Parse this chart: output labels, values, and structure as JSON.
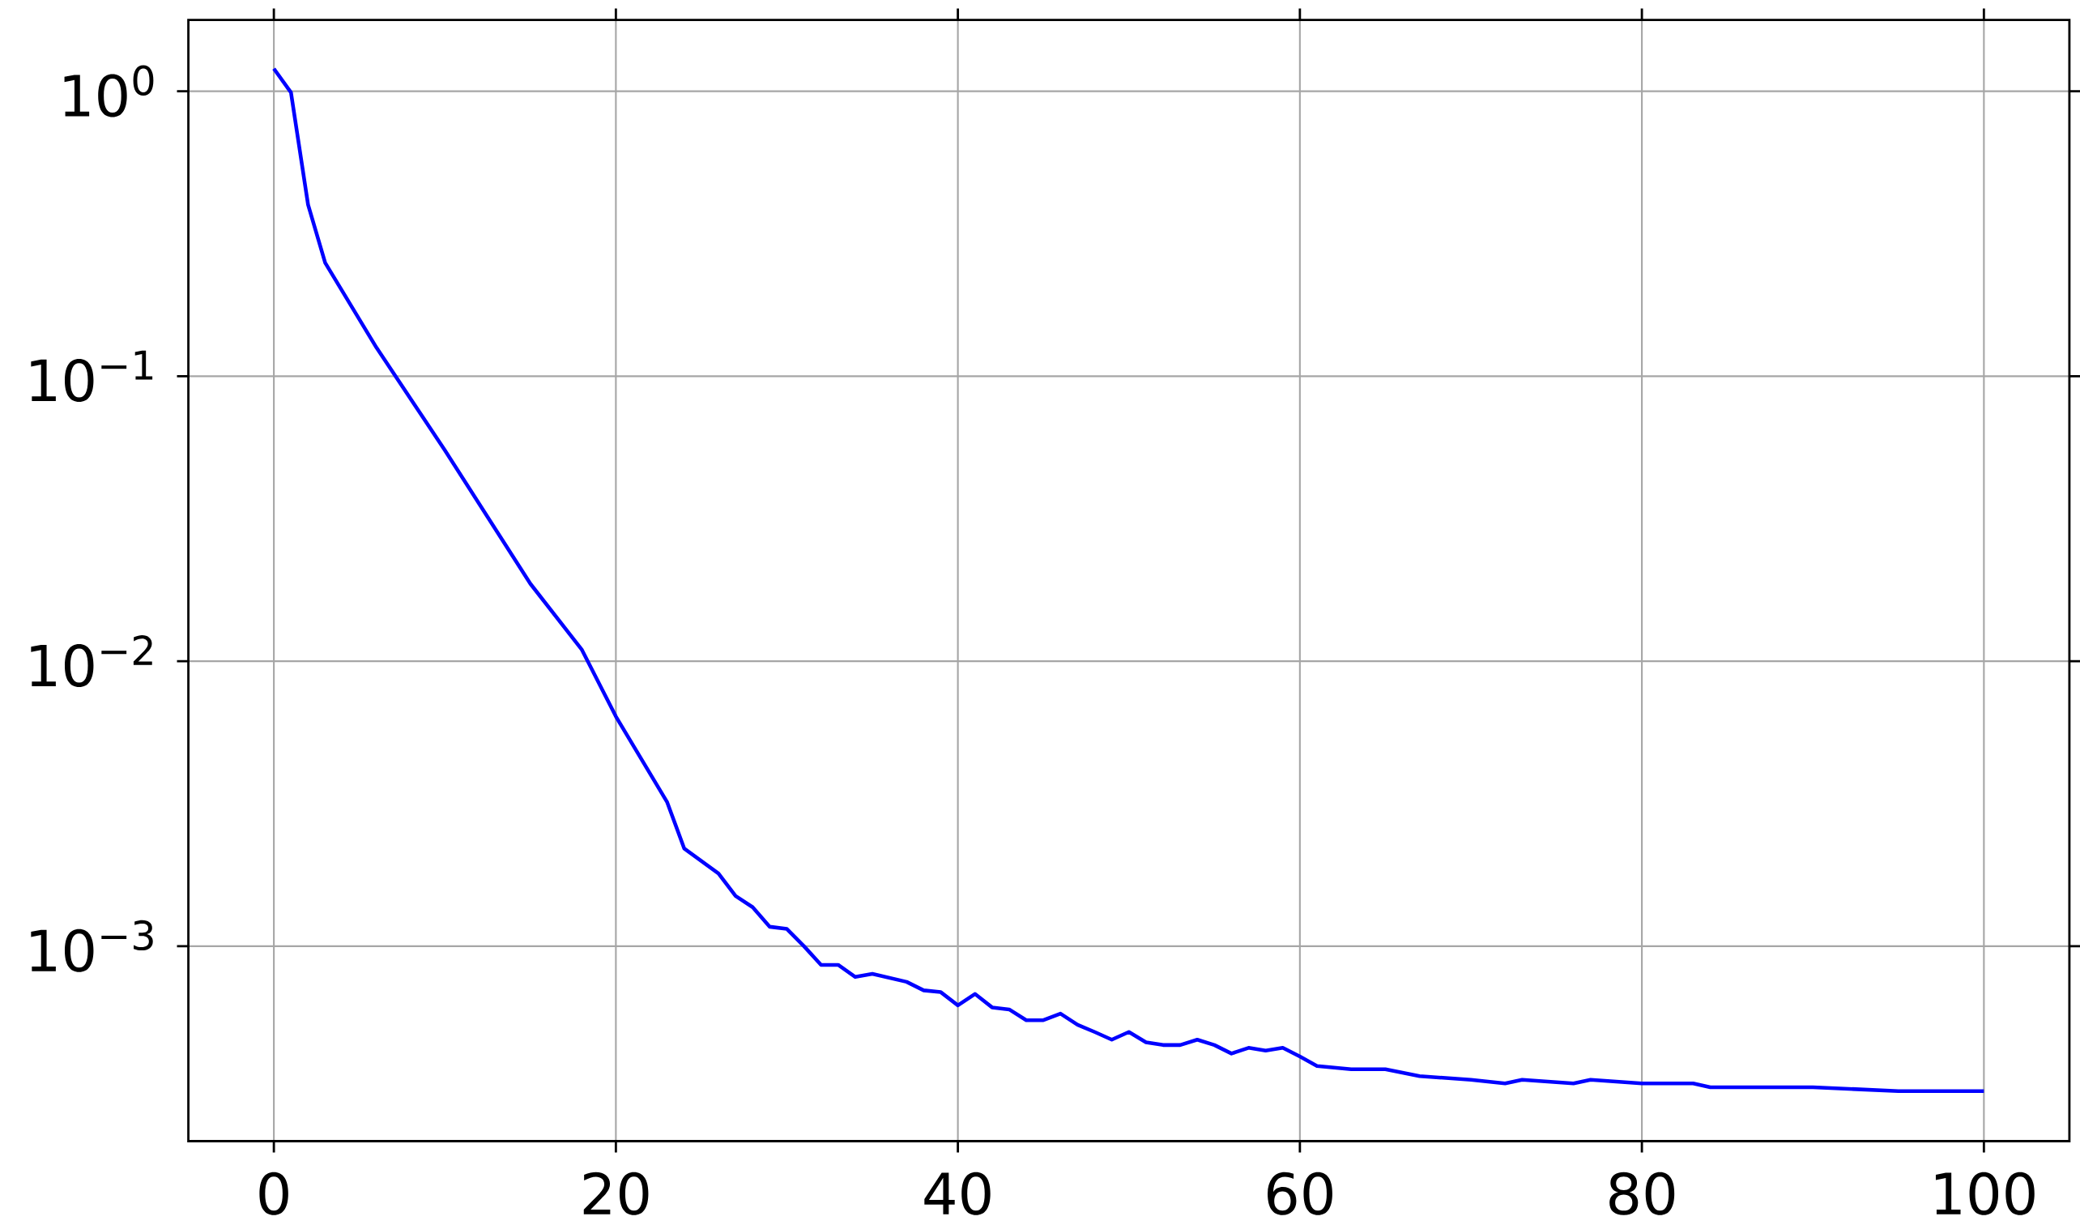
{
  "chart_data": {
    "type": "line",
    "log": "y",
    "grid": true,
    "line_style": "solid",
    "marker": "none",
    "xlim": [
      -5,
      105
    ],
    "ylim": [
      0.000207,
      1.78
    ],
    "xticks": [
      0,
      20,
      40,
      60,
      80,
      100
    ],
    "yticks": [
      {
        "value": 0.001,
        "label": "10$^{−3}$"
      },
      {
        "value": 0.01,
        "label": "10$^{−2}$"
      },
      {
        "value": 0.1,
        "label": "10$^{−1}$"
      },
      {
        "value": 1,
        "label": "10$^{0}$"
      }
    ],
    "x": [
      0,
      1,
      2,
      3,
      6,
      10,
      15,
      18,
      20,
      23,
      24,
      26,
      27,
      28,
      29,
      30,
      31,
      32,
      33,
      34,
      35,
      37,
      38,
      39,
      40,
      41,
      42,
      43,
      44,
      45,
      46,
      47,
      48,
      49,
      50,
      51,
      52,
      53,
      54,
      55,
      56,
      57,
      58,
      59,
      60,
      61,
      63,
      65,
      66,
      67,
      70,
      72,
      73,
      76,
      77,
      80,
      83,
      84,
      90,
      95,
      100
    ],
    "series": [
      {
        "color": "#0000ff",
        "values": [
          1.2,
          0.99,
          0.4,
          0.25,
          0.126,
          0.055,
          0.0187,
          0.011,
          0.0064,
          0.0032,
          0.0022,
          0.0018,
          0.0015,
          0.00137,
          0.00117,
          0.00115,
          0.001,
          0.00086,
          0.00086,
          0.00078,
          0.0008,
          0.00075,
          0.0007,
          0.00069,
          0.00062,
          0.00068,
          0.00061,
          0.0006,
          0.00055,
          0.00055,
          0.00058,
          0.00053,
          0.0005,
          0.00047,
          0.0005,
          0.00046,
          0.00045,
          0.00045,
          0.00047,
          0.00045,
          0.00042,
          0.00044,
          0.00043,
          0.00044,
          0.00041,
          0.00038,
          0.00037,
          0.00037,
          0.00036,
          0.00035,
          0.00034,
          0.00033,
          0.00034,
          0.00033,
          0.00034,
          0.00033,
          0.00033,
          0.00032,
          0.00032,
          0.00031,
          0.00031
        ]
      }
    ]
  }
}
